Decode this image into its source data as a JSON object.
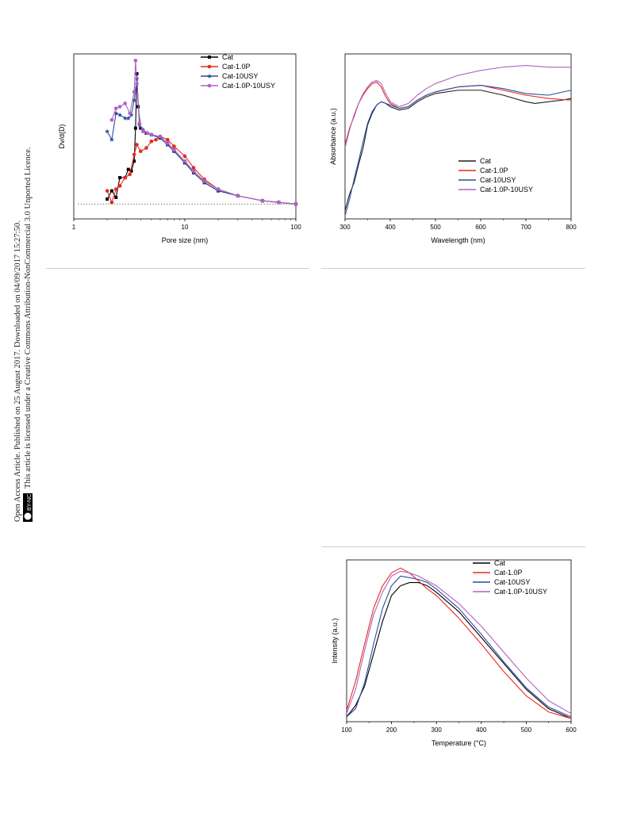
{
  "margin_notice": {
    "line1": "Open Access Article. Published on 25 August 2017. Downloaded on 04/09/2017 15:27:50.",
    "line2": "This article is licensed under a Creative Commons Attribution-NonCommercial 3.0 Unported Licence.",
    "badge_text": "BY-NC"
  },
  "chart_data": [
    {
      "type": "line",
      "xlabel": "Pore size (nm)",
      "ylabel": "Dv/d(D)",
      "x_scale": "log",
      "xlim": [
        1,
        100
      ],
      "ylim": [
        0,
        1
      ],
      "x_ticks": [
        "1",
        "10",
        "100"
      ],
      "grid": false,
      "legend_position": "top-right",
      "reference_line": {
        "style": "dotted",
        "y": 0.09
      },
      "series": [
        {
          "name": "Cat",
          "color": "#000000",
          "marker": "square",
          "x": [
            2.0,
            2.2,
            2.4,
            2.6,
            2.9,
            3.1,
            3.3,
            3.5,
            3.6,
            3.7,
            3.8,
            4.0,
            4.5,
            5.0,
            6.0,
            7.0,
            8.0,
            10,
            12,
            15,
            20,
            30,
            50,
            70,
            100
          ],
          "y": [
            0.12,
            0.17,
            0.13,
            0.25,
            0.25,
            0.3,
            0.29,
            0.35,
            0.55,
            0.88,
            0.68,
            0.55,
            0.52,
            0.51,
            0.49,
            0.45,
            0.41,
            0.34,
            0.28,
            0.22,
            0.17,
            0.14,
            0.11,
            0.1,
            0.09
          ]
        },
        {
          "name": "Cat-1.0P",
          "color": "#e8281e",
          "marker": "circle",
          "x": [
            2.0,
            2.2,
            2.4,
            2.6,
            2.9,
            3.2,
            3.5,
            3.7,
            4.0,
            4.5,
            5.0,
            5.5,
            6.0,
            7.0,
            8.0,
            10,
            12,
            15,
            20,
            30,
            50,
            70,
            100
          ],
          "y": [
            0.17,
            0.1,
            0.18,
            0.2,
            0.25,
            0.27,
            0.39,
            0.45,
            0.41,
            0.43,
            0.47,
            0.48,
            0.5,
            0.48,
            0.44,
            0.38,
            0.31,
            0.24,
            0.18,
            0.14,
            0.11,
            0.1,
            0.09
          ]
        },
        {
          "name": "Cat-10USY",
          "color": "#2c4d9e",
          "marker": "star",
          "x": [
            2.0,
            2.2,
            2.4,
            2.6,
            2.9,
            3.1,
            3.3,
            3.5,
            3.7,
            3.9,
            4.2,
            4.6,
            5.0,
            6.0,
            7.0,
            8.0,
            10,
            12,
            15,
            20,
            30,
            50,
            70,
            100
          ],
          "y": [
            0.53,
            0.48,
            0.64,
            0.63,
            0.61,
            0.61,
            0.63,
            0.72,
            0.85,
            0.57,
            0.54,
            0.52,
            0.51,
            0.49,
            0.45,
            0.41,
            0.34,
            0.28,
            0.22,
            0.17,
            0.14,
            0.11,
            0.1,
            0.09
          ]
        },
        {
          "name": "Cat-1.0P-10USY",
          "color": "#b061c8",
          "marker": "circle",
          "x": [
            2.2,
            2.4,
            2.6,
            2.9,
            3.2,
            3.5,
            3.6,
            3.7,
            3.9,
            4.2,
            4.6,
            5.0,
            6.0,
            7.0,
            8.0,
            10,
            12,
            15,
            20,
            30,
            50,
            70,
            100
          ],
          "y": [
            0.6,
            0.67,
            0.68,
            0.7,
            0.64,
            0.77,
            0.96,
            0.82,
            0.58,
            0.53,
            0.52,
            0.51,
            0.5,
            0.46,
            0.42,
            0.35,
            0.29,
            0.23,
            0.18,
            0.14,
            0.11,
            0.1,
            0.09
          ]
        }
      ]
    },
    {
      "type": "line",
      "xlabel": "Wavelength (nm)",
      "ylabel": "Absorbance (a.u.)",
      "xlim": [
        300,
        800
      ],
      "ylim": [
        0,
        1
      ],
      "x_ticks": [
        "300",
        "400",
        "500",
        "600",
        "700",
        "800"
      ],
      "grid": false,
      "legend_position": "bottom-right",
      "series": [
        {
          "name": "Cat",
          "color": "#1f1f1f",
          "x": [
            300,
            310,
            320,
            330,
            340,
            350,
            360,
            370,
            380,
            390,
            400,
            420,
            440,
            460,
            480,
            500,
            550,
            600,
            650,
            700,
            720,
            750,
            780,
            800
          ],
          "y": [
            0.05,
            0.15,
            0.22,
            0.33,
            0.43,
            0.57,
            0.64,
            0.69,
            0.71,
            0.7,
            0.68,
            0.66,
            0.67,
            0.71,
            0.74,
            0.76,
            0.78,
            0.78,
            0.75,
            0.71,
            0.7,
            0.71,
            0.72,
            0.73
          ]
        },
        {
          "name": "Cat-1.0P",
          "color": "#e8281e",
          "x": [
            300,
            310,
            320,
            330,
            340,
            350,
            360,
            370,
            380,
            390,
            400,
            420,
            440,
            460,
            480,
            500,
            550,
            600,
            650,
            700,
            750,
            800
          ],
          "y": [
            0.45,
            0.55,
            0.62,
            0.7,
            0.75,
            0.79,
            0.82,
            0.83,
            0.8,
            0.74,
            0.7,
            0.67,
            0.68,
            0.72,
            0.75,
            0.77,
            0.8,
            0.81,
            0.78,
            0.75,
            0.73,
            0.72
          ]
        },
        {
          "name": "Cat-10USY",
          "color": "#2c4d9e",
          "x": [
            300,
            310,
            320,
            330,
            340,
            350,
            360,
            370,
            380,
            390,
            400,
            420,
            440,
            460,
            480,
            500,
            550,
            600,
            650,
            700,
            750,
            800
          ],
          "y": [
            0.02,
            0.12,
            0.24,
            0.35,
            0.47,
            0.58,
            0.65,
            0.69,
            0.71,
            0.7,
            0.69,
            0.67,
            0.68,
            0.72,
            0.75,
            0.77,
            0.8,
            0.81,
            0.79,
            0.76,
            0.75,
            0.78
          ]
        },
        {
          "name": "Cat-1.0P-10USY",
          "color": "#b061c8",
          "x": [
            300,
            310,
            320,
            330,
            340,
            350,
            360,
            370,
            380,
            390,
            400,
            420,
            440,
            460,
            480,
            500,
            550,
            600,
            650,
            700,
            750,
            800
          ],
          "y": [
            0.43,
            0.54,
            0.63,
            0.7,
            0.76,
            0.8,
            0.83,
            0.84,
            0.82,
            0.76,
            0.71,
            0.68,
            0.7,
            0.75,
            0.79,
            0.82,
            0.87,
            0.9,
            0.92,
            0.93,
            0.92,
            0.92
          ]
        }
      ]
    },
    {
      "type": "line",
      "xlabel": "Temperature (°C)",
      "ylabel": "Intensity (a.u.)",
      "xlim": [
        100,
        600
      ],
      "ylim": [
        0,
        1
      ],
      "x_ticks": [
        "100",
        "200",
        "300",
        "400",
        "500",
        "600"
      ],
      "grid": false,
      "legend_position": "top-right",
      "series": [
        {
          "name": "Cat",
          "color": "#000000",
          "x": [
            100,
            120,
            140,
            160,
            180,
            200,
            220,
            240,
            260,
            280,
            300,
            350,
            400,
            450,
            500,
            550,
            600
          ],
          "y": [
            0.03,
            0.1,
            0.22,
            0.42,
            0.62,
            0.78,
            0.84,
            0.86,
            0.86,
            0.84,
            0.8,
            0.68,
            0.52,
            0.36,
            0.2,
            0.08,
            0.02
          ]
        },
        {
          "name": "Cat-1.0P",
          "color": "#e8281e",
          "x": [
            100,
            120,
            140,
            160,
            180,
            200,
            220,
            240,
            260,
            280,
            300,
            350,
            400,
            450,
            500,
            550,
            600
          ],
          "y": [
            0.07,
            0.25,
            0.48,
            0.7,
            0.84,
            0.92,
            0.95,
            0.92,
            0.87,
            0.82,
            0.78,
            0.64,
            0.48,
            0.31,
            0.16,
            0.06,
            0.02
          ]
        },
        {
          "name": "Cat-10USY",
          "color": "#2c4d9e",
          "x": [
            100,
            120,
            140,
            160,
            180,
            200,
            220,
            240,
            260,
            280,
            300,
            350,
            400,
            450,
            500,
            550,
            600
          ],
          "y": [
            0.03,
            0.08,
            0.24,
            0.48,
            0.7,
            0.84,
            0.9,
            0.89,
            0.88,
            0.86,
            0.82,
            0.7,
            0.54,
            0.37,
            0.21,
            0.09,
            0.03
          ]
        },
        {
          "name": "Cat-1.0P-10USY",
          "color": "#b061c8",
          "x": [
            100,
            120,
            140,
            160,
            180,
            200,
            220,
            240,
            260,
            280,
            300,
            350,
            400,
            450,
            500,
            550,
            600
          ],
          "y": [
            0.05,
            0.2,
            0.44,
            0.66,
            0.8,
            0.9,
            0.93,
            0.92,
            0.9,
            0.87,
            0.84,
            0.73,
            0.59,
            0.43,
            0.27,
            0.13,
            0.05
          ]
        }
      ]
    }
  ]
}
